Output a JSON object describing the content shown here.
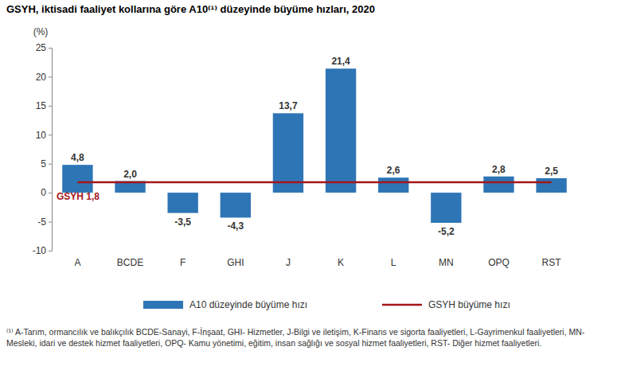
{
  "chart_data": {
    "type": "bar",
    "title": "GSYH, iktisadi faaliyet kollarına göre A10⁽¹⁾ düzeyinde büyüme hızları, 2020",
    "y_label": "(%)",
    "categories": [
      "A",
      "BCDE",
      "F",
      "GHI",
      "J",
      "K",
      "L",
      "MN",
      "OPQ",
      "RST"
    ],
    "series": [
      {
        "name": "A10 düzeyinde büyüme hızı",
        "type": "bar",
        "color": "#2e75b6",
        "values": [
          4.8,
          2.0,
          -3.5,
          -4.3,
          13.7,
          21.4,
          2.6,
          -5.2,
          2.8,
          2.5
        ],
        "value_labels": [
          "4,8",
          "2,0",
          "-3,5",
          "-4,3",
          "13,7",
          "21,4",
          "2,6",
          "-5,2",
          "2,8",
          "2,5"
        ]
      },
      {
        "name": "GSYH büyüme hızı",
        "type": "line",
        "color": "#a4161a",
        "values": [
          1.8,
          1.8,
          1.8,
          1.8,
          1.8,
          1.8,
          1.8,
          1.8,
          1.8,
          1.8
        ]
      }
    ],
    "annotations": [
      {
        "text": "GSYH 1,8"
      }
    ],
    "ylim": [
      -10,
      25
    ],
    "yticks": [
      -10,
      -5,
      0,
      5,
      10,
      15,
      20,
      25
    ],
    "grid": false,
    "legend": "bottom",
    "data_labels": true,
    "footnote": "⁽¹⁾ A-Tarım, ormancılık ve balıkçılık BCDE-Sanayi, F-İnşaat, GHI- Hizmetler, J-Bilgi ve iletişim, K-Finans ve sigorta faaliyetleri, L-Gayrimenkul faaliyetleri, MN- Mesleki, idari ve destek hizmet faaliyetleri, OPQ- Kamu yönetimi, eğitim, insan sağlığı ve sosyal hizmet faaliyetleri, RST- Diğer hizmet faaliyetleri."
  }
}
